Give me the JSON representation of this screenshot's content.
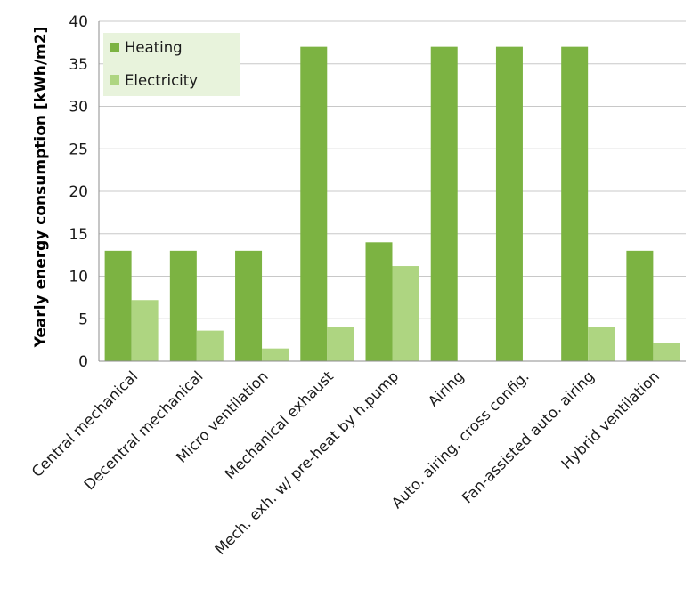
{
  "chart_data": {
    "type": "bar",
    "title": "",
    "xlabel": "",
    "ylabel": "Yearly energy consumption [kWh/m2]",
    "ylim": [
      0,
      40
    ],
    "yticks": [
      0,
      5,
      10,
      15,
      20,
      25,
      30,
      35,
      40
    ],
    "grid": "horizontal",
    "legend_position": "top-left",
    "categories": [
      "Central mechanical",
      "Decentral mechanical",
      "Micro ventilation",
      "Mechanical exhaust",
      "Mech. exh. w/ pre-heat by h.pump",
      "Airing",
      "Auto. airing, cross config.",
      "Fan-assisted auto. airing",
      "Hybrid ventilation"
    ],
    "series": [
      {
        "name": "Heating",
        "color": "#7cb342",
        "values": [
          13,
          13,
          13,
          37,
          14,
          37,
          37,
          37,
          13
        ]
      },
      {
        "name": "Electricity",
        "color": "#aed581",
        "values": [
          7.2,
          3.6,
          1.5,
          4,
          11.2,
          0,
          0,
          4,
          2.1
        ]
      }
    ],
    "legend_background": "#e8f3dc"
  }
}
